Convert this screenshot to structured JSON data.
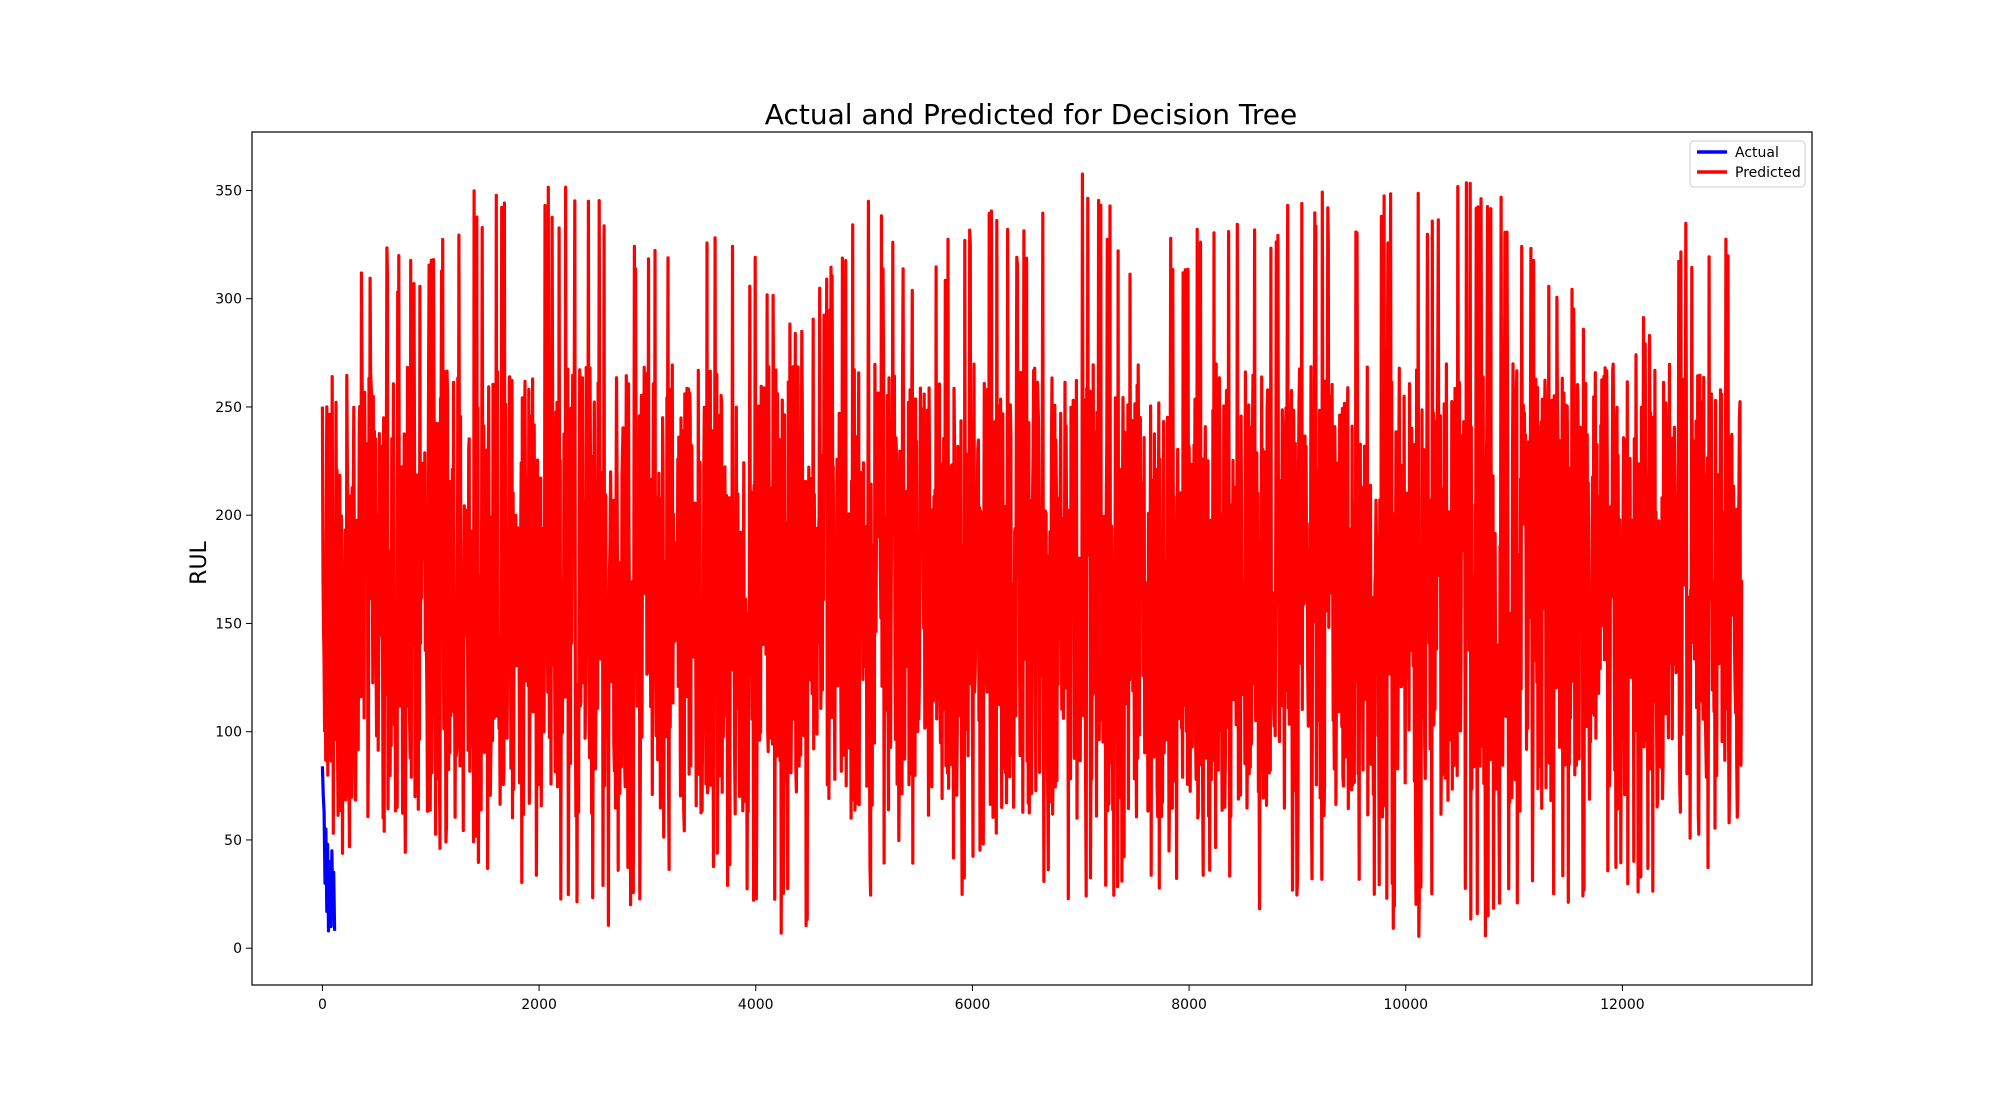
{
  "chart_data": {
    "type": "line",
    "title": "Actual and Predicted for Decision Tree",
    "xlabel": "",
    "ylabel": "RUL",
    "xlim": [
      -650,
      13750
    ],
    "ylim": [
      -17,
      377
    ],
    "xticks": [
      0,
      2000,
      4000,
      6000,
      8000,
      10000,
      12000
    ],
    "yticks": [
      0,
      50,
      100,
      150,
      200,
      250,
      300,
      350
    ],
    "grid": false,
    "legend": "top-right",
    "series": [
      {
        "name": "Actual",
        "color": "#0000ff",
        "x": [
          0,
          8,
          16,
          24,
          32,
          40,
          48,
          56,
          64,
          72,
          80,
          88,
          96,
          104,
          112
        ],
        "y": [
          84,
          70,
          63,
          30,
          55,
          17,
          48,
          8,
          40,
          25,
          10,
          45,
          18,
          35,
          8
        ]
      },
      {
        "name": "Predicted",
        "color": "#ff0000",
        "x": [
          0,
          2000,
          4000,
          6000,
          8000,
          10000,
          12000,
          13100
        ],
        "y": [
          120,
          130,
          125,
          135,
          130,
          140,
          128,
          105
        ],
        "envelope": {
          "x": [
            0,
            500,
            1000,
            1500,
            2000,
            2500,
            3000,
            3500,
            4000,
            4500,
            5000,
            5500,
            6000,
            6500,
            7000,
            7500,
            8000,
            8500,
            9000,
            9500,
            10000,
            10500,
            11000,
            11500,
            12000,
            12500,
            13000,
            13100
          ],
          "min": [
            40,
            30,
            40,
            30,
            25,
            1,
            25,
            42,
            5,
            8,
            20,
            35,
            20,
            42,
            5,
            25,
            28,
            15,
            10,
            15,
            5,
            3,
            8,
            10,
            15,
            25,
            40,
            10
          ],
          "max": [
            321,
            325,
            325,
            358,
            358,
            355,
            332,
            333,
            322,
            300,
            348,
            318,
            348,
            338,
            360,
            330,
            330,
            345,
            348,
            352,
            348,
            360,
            352,
            310,
            265,
            337,
            343,
            288
          ]
        }
      }
    ]
  }
}
